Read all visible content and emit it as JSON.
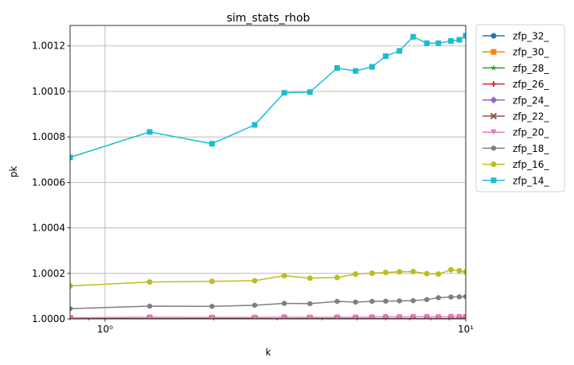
{
  "chart_data": {
    "type": "line",
    "title": "sim_stats_rhob",
    "xlabel": "k",
    "ylabel": "pk",
    "xscale": "log",
    "xlim": [
      0.8,
      10
    ],
    "ylim": [
      1.0,
      1.00129
    ],
    "x_major_ticks": [
      1,
      10
    ],
    "x_major_tick_labels": [
      "10⁰",
      "10¹"
    ],
    "y_ticks": [
      1.0,
      1.0002,
      1.0004,
      1.0006,
      1.0008,
      1.001,
      1.0012
    ],
    "y_tick_labels": [
      "1.0000",
      "1.0002",
      "1.0004",
      "1.0006",
      "1.0008",
      "1.0010",
      "1.0012"
    ],
    "grid": true,
    "legend_position": "outside-right",
    "x": [
      0.8,
      1.33,
      1.98,
      2.6,
      3.14,
      3.7,
      4.4,
      4.95,
      5.5,
      6.0,
      6.55,
      7.15,
      7.8,
      8.4,
      9.1,
      9.6,
      10.0
    ],
    "series": [
      {
        "name": "zfp_32_",
        "color": "#1f77b4",
        "marker": "circle",
        "values": [
          1.0,
          1.0,
          1.0,
          1.0,
          1.0,
          1.0,
          1.0,
          1.0,
          1.0,
          1.0,
          1.0,
          1.0,
          1.0,
          1.0,
          1.0,
          1.0,
          1.0
        ]
      },
      {
        "name": "zfp_30_",
        "color": "#ff7f0e",
        "marker": "square",
        "values": [
          1.0,
          1.0,
          1.0,
          1.0,
          1.0,
          1.0,
          1.0,
          1.0,
          1.0,
          1.0,
          1.0,
          1.0,
          1.0,
          1.0,
          1.0,
          1.0,
          1.0
        ]
      },
      {
        "name": "zfp_28_",
        "color": "#2ca02c",
        "marker": "star",
        "values": [
          1.0,
          1.0,
          1.0,
          1.0,
          1.0,
          1.0,
          1.0,
          1.0,
          1.0,
          1.0,
          1.0,
          1.0,
          1.0,
          1.0,
          1.0,
          1.0,
          1.0
        ]
      },
      {
        "name": "zfp_26_",
        "color": "#d62728",
        "marker": "plus",
        "values": [
          1.0,
          1.0,
          1.0,
          1.0,
          1.0,
          1.0,
          1.0,
          1.0,
          1.0,
          1.0,
          1.0,
          1.0,
          1.0,
          1.0,
          1.0,
          1.0,
          1.0
        ]
      },
      {
        "name": "zfp_24_",
        "color": "#9467bd",
        "marker": "diamond",
        "values": [
          1.0,
          1.0,
          1.0,
          1.0,
          1.0,
          1.0,
          1.0,
          1.0,
          1.0,
          1.0,
          1.0,
          1.0,
          1.0,
          1.0,
          1.0,
          1.0,
          1.0
        ]
      },
      {
        "name": "zfp_22_",
        "color": "#8c564b",
        "marker": "x",
        "values": [
          1.0000004,
          1.0000004,
          1.0000004,
          1.0000004,
          1.0000004,
          1.0000004,
          1.0000004,
          1.0000004,
          1.0000004,
          1.0000004,
          1.0000004,
          1.0000004,
          1.0000004,
          1.0000004,
          1.0000004,
          1.0000004,
          1.0000004
        ]
      },
      {
        "name": "zfp_20_",
        "color": "#e377c2",
        "marker": "triangle-down",
        "values": [
          1.000005,
          1.000007,
          1.000006,
          1.000006,
          1.000008,
          1.000006,
          1.000007,
          1.000007,
          1.000008,
          1.000009,
          1.000008,
          1.000009,
          1.000009,
          1.000008,
          1.000009,
          1.000009,
          1.000009
        ]
      },
      {
        "name": "zfp_18_",
        "color": "#7f7f7f",
        "marker": "hexagon",
        "values": [
          1.000045,
          1.000056,
          1.000055,
          1.00006,
          1.000068,
          1.000067,
          1.000077,
          1.000074,
          1.000077,
          1.000078,
          1.000079,
          1.00008,
          1.000085,
          1.000093,
          1.000096,
          1.000097,
          1.000098
        ]
      },
      {
        "name": "zfp_16_",
        "color": "#bcbd22",
        "marker": "circle",
        "values": [
          1.000145,
          1.000162,
          1.000165,
          1.000168,
          1.00019,
          1.000179,
          1.000182,
          1.000197,
          1.000201,
          1.000204,
          1.000207,
          1.000208,
          1.000199,
          1.000197,
          1.000216,
          1.000212,
          1.000206
        ]
      },
      {
        "name": "zfp_14_",
        "color": "#17becf",
        "marker": "square",
        "values": [
          1.00071,
          1.000822,
          1.00077,
          1.000853,
          1.000994,
          1.000997,
          1.001103,
          1.00109,
          1.001108,
          1.001155,
          1.001178,
          1.00124,
          1.001212,
          1.001212,
          1.001222,
          1.001227,
          1.001245
        ]
      }
    ]
  }
}
